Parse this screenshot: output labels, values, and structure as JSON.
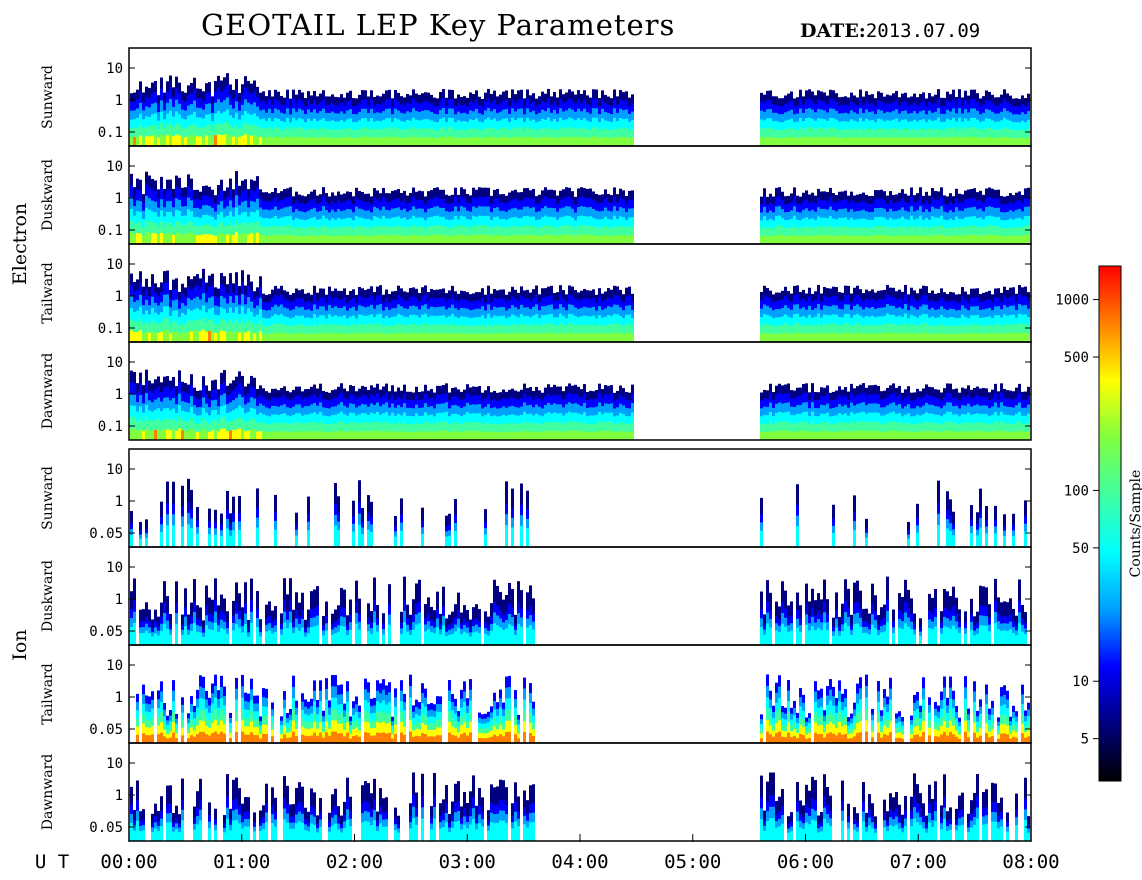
{
  "header": {
    "title": "GEOTAIL LEP Key Parameters",
    "date_label": "DATE:",
    "date_value": "2013.07.09"
  },
  "chart_data": {
    "type": "heatmap",
    "title": "GEOTAIL LEP Key Parameters",
    "x_axis": {
      "label": "U T",
      "range": [
        "00:00",
        "08:00"
      ],
      "ticks": [
        "00:00",
        "01:00",
        "02:00",
        "03:00",
        "04:00",
        "05:00",
        "06:00",
        "07:00",
        "08:00"
      ]
    },
    "groups": [
      {
        "name": "Electron",
        "y_ticks": [
          "10",
          "1",
          "0.1"
        ],
        "panels": [
          "Sunward",
          "Duskward",
          "Tailward",
          "Dawnward"
        ],
        "data_gaps_ut": [
          [
            "04:30",
            "05:35"
          ]
        ]
      },
      {
        "name": "Ion",
        "y_ticks": [
          "10",
          "1",
          "0.05"
        ],
        "panels": [
          "Sunward",
          "Duskward",
          "Tailward",
          "Dawnward"
        ],
        "data_gaps_ut": [
          [
            "03:37",
            "05:35"
          ]
        ]
      }
    ],
    "colorbar": {
      "label": "Counts/Sample",
      "scale": "log",
      "range": [
        3,
        1500
      ],
      "ticks": [
        1000,
        500,
        100,
        50,
        10,
        5
      ],
      "colormap": [
        "#000000",
        "#000080",
        "#0000ff",
        "#00a0ff",
        "#00ffff",
        "#40ffa0",
        "#80ff40",
        "#ffff00",
        "#ff8000",
        "#ff0000"
      ]
    }
  }
}
